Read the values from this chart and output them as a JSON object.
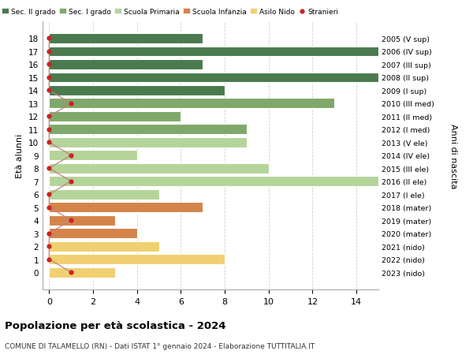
{
  "ages": [
    18,
    17,
    16,
    15,
    14,
    13,
    12,
    11,
    10,
    9,
    8,
    7,
    6,
    5,
    4,
    3,
    2,
    1,
    0
  ],
  "years": [
    "2005 (V sup)",
    "2006 (IV sup)",
    "2007 (III sup)",
    "2008 (II sup)",
    "2009 (I sup)",
    "2010 (III med)",
    "2011 (II med)",
    "2012 (I med)",
    "2013 (V ele)",
    "2014 (IV ele)",
    "2015 (III ele)",
    "2016 (II ele)",
    "2017 (I ele)",
    "2018 (mater)",
    "2019 (mater)",
    "2020 (mater)",
    "2021 (nido)",
    "2022 (nido)",
    "2023 (nido)"
  ],
  "values": [
    7,
    15,
    7,
    15,
    8,
    13,
    6,
    9,
    9,
    4,
    10,
    15,
    5,
    7,
    3,
    4,
    5,
    8,
    3
  ],
  "bar_colors": [
    "#4a7a4e",
    "#4a7a4e",
    "#4a7a4e",
    "#4a7a4e",
    "#4a7a4e",
    "#80a86a",
    "#80a86a",
    "#80a86a",
    "#b5d49a",
    "#b5d49a",
    "#b5d49a",
    "#b5d49a",
    "#b5d49a",
    "#d4844a",
    "#d4844a",
    "#d4844a",
    "#f0d070",
    "#f0d070",
    "#f0d070"
  ],
  "stranieri_x": [
    0,
    0,
    0,
    0,
    0,
    1,
    0,
    0,
    0,
    1,
    0,
    1,
    0,
    0,
    1,
    0,
    0,
    0,
    1
  ],
  "legend_labels": [
    "Sec. II grado",
    "Sec. I grado",
    "Scuola Primaria",
    "Scuola Infanzia",
    "Asilo Nido",
    "Stranieri"
  ],
  "legend_colors": [
    "#4a7a4e",
    "#80a86a",
    "#b5d49a",
    "#d4844a",
    "#f0d070",
    "#cc2222"
  ],
  "title": "Popolazione per età scolastica - 2024",
  "subtitle": "COMUNE DI TALAMELLO (RN) - Dati ISTAT 1° gennaio 2024 - Elaborazione TUTTITALIA.IT",
  "ylabel": "Età alunni",
  "right_label": "Anni di nascita",
  "xlim": [
    -0.3,
    15
  ],
  "xticks": [
    0,
    2,
    4,
    6,
    8,
    10,
    12,
    14
  ],
  "background_color": "#ffffff",
  "grid_color": "#d0d0d0",
  "bar_height": 0.78,
  "stranieri_dot_color": "#cc2222",
  "stranieri_line_color": "#c08080"
}
